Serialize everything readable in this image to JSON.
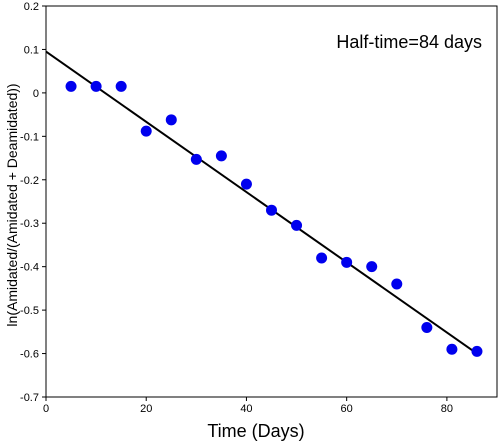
{
  "chart_data": {
    "type": "scatter",
    "title": "",
    "xlabel": "Time (Days)",
    "ylabel": "ln(Amidated/(Amidated + Deamidated))",
    "xlim": [
      0,
      90
    ],
    "ylim": [
      -0.7,
      0.2
    ],
    "x_ticks": [
      0,
      20,
      40,
      60,
      80
    ],
    "y_ticks": [
      0.2,
      0.1,
      0,
      -0.1,
      -0.2,
      -0.3,
      -0.4,
      -0.5,
      -0.6,
      -0.7
    ],
    "x_tick_labels": [
      "0",
      "20",
      "40",
      "60",
      "80"
    ],
    "y_tick_labels": [
      "0.2",
      "0.1",
      "0",
      "-0.1",
      "-0.2",
      "-0.3",
      "-0.4",
      "-0.5",
      "-0.6",
      "-0.7"
    ],
    "grid": false,
    "annotation": "Half-time=84 days",
    "series": [
      {
        "x": [
          5,
          10,
          15,
          20,
          25,
          30,
          35,
          40,
          45,
          50,
          55,
          60,
          65,
          70,
          76,
          81,
          86
        ],
        "y": [
          0.015,
          0.015,
          0.015,
          -0.088,
          -0.062,
          -0.153,
          -0.145,
          -0.21,
          -0.27,
          -0.305,
          -0.38,
          -0.39,
          -0.4,
          -0.44,
          -0.54,
          -0.59,
          -0.595
        ],
        "color": "#0000ee"
      }
    ],
    "fit_line": {
      "x": [
        0,
        86
      ],
      "y": [
        0.095,
        -0.6
      ],
      "color": "#000000"
    }
  }
}
